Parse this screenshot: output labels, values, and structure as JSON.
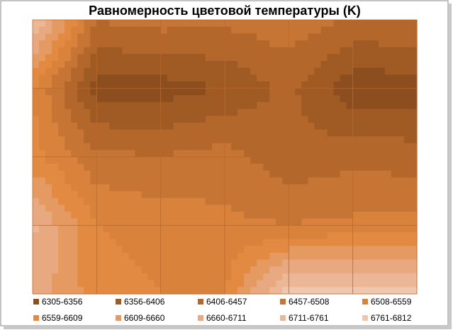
{
  "chart_data": {
    "type": "contour",
    "title": "Равномерность цветовой температуры (K)",
    "z": [
      [
        6780,
        6460,
        6480,
        6470,
        6490,
        6450,
        6450
      ],
      [
        6560,
        6330,
        6330,
        6360,
        6420,
        6320,
        6330
      ],
      [
        6580,
        6470,
        6460,
        6480,
        6420,
        6440,
        6430
      ],
      [
        6720,
        6560,
        6540,
        6520,
        6510,
        6520,
        6530
      ],
      [
        6700,
        6580,
        6560,
        6560,
        6800,
        6800,
        6780
      ]
    ],
    "levels": [
      6305,
      6356,
      6406,
      6457,
      6508,
      6559,
      6609,
      6660,
      6711,
      6761,
      6812
    ],
    "bands": [
      {
        "name": "6305-6356",
        "color": "#8c4e1e"
      },
      {
        "name": "6356-6406",
        "color": "#a05a24"
      },
      {
        "name": "6406-6457",
        "color": "#b3672b"
      },
      {
        "name": "6457-6508",
        "color": "#c67535"
      },
      {
        "name": "6508-6559",
        "color": "#d8823c"
      },
      {
        "name": "6559-6609",
        "color": "#e38a42"
      },
      {
        "name": "6609-6660",
        "color": "#e59a62"
      },
      {
        "name": "6660-6711",
        "color": "#e8a880"
      },
      {
        "name": "6711-6761",
        "color": "#ebb797"
      },
      {
        "name": "6761-6812",
        "color": "#efc6ae"
      }
    ],
    "grid": true
  }
}
